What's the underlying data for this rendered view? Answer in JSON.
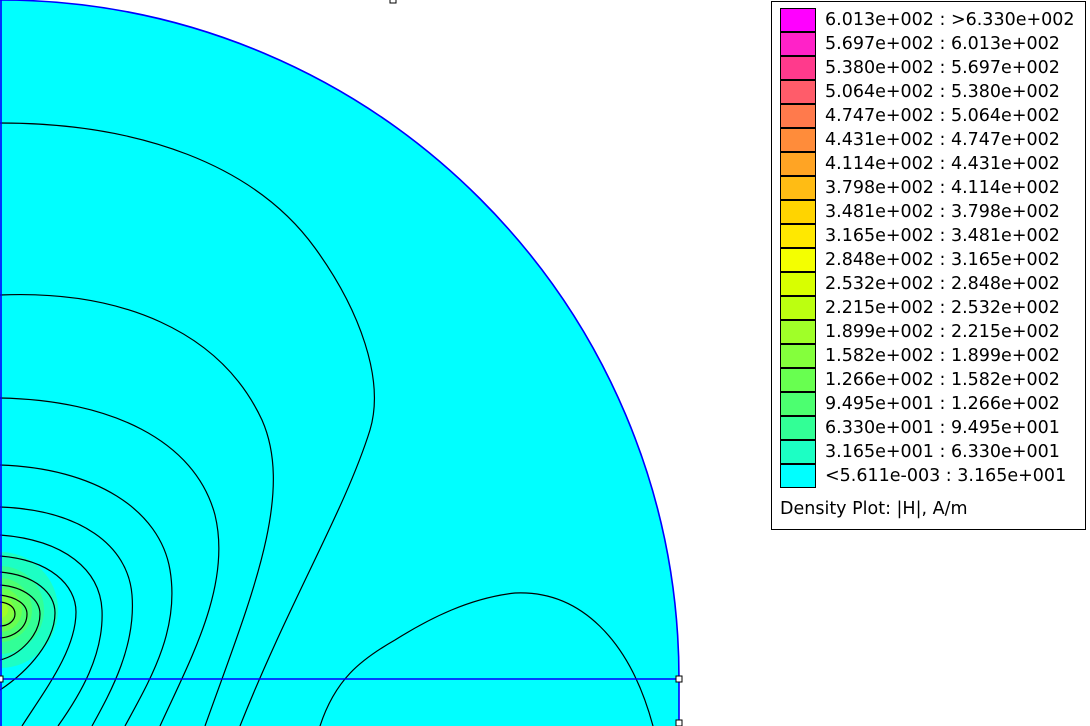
{
  "colors": {
    "background_field": "#00ffff",
    "boundary": "#0000ff",
    "contour_line": "#000000"
  },
  "legend": {
    "title": "Density Plot: |H|, A/m",
    "entries": [
      {
        "label": "6.013e+002 : >6.330e+002",
        "color": "#ff00ff"
      },
      {
        "label": "5.697e+002 : 6.013e+002",
        "color": "#ff22c8"
      },
      {
        "label": "5.380e+002 : 5.697e+002",
        "color": "#ff3a8c"
      },
      {
        "label": "5.064e+002 : 5.380e+002",
        "color": "#ff5c6a"
      },
      {
        "label": "4.747e+002 : 5.064e+002",
        "color": "#ff7a4c"
      },
      {
        "label": "4.431e+002 : 4.747e+002",
        "color": "#ff8c3a"
      },
      {
        "label": "4.114e+002 : 4.431e+002",
        "color": "#ffa424"
      },
      {
        "label": "3.798e+002 : 4.114e+002",
        "color": "#ffbc14"
      },
      {
        "label": "3.481e+002 : 3.798e+002",
        "color": "#ffd400"
      },
      {
        "label": "3.165e+002 : 3.481e+002",
        "color": "#ffe800"
      },
      {
        "label": "2.848e+002 : 3.165e+002",
        "color": "#f4ff00"
      },
      {
        "label": "2.532e+002 : 2.848e+002",
        "color": "#d8ff00"
      },
      {
        "label": "2.215e+002 : 2.532e+002",
        "color": "#bcff10"
      },
      {
        "label": "1.899e+002 : 2.215e+002",
        "color": "#a0ff28"
      },
      {
        "label": "1.582e+002 : 1.899e+002",
        "color": "#84ff3c"
      },
      {
        "label": "1.266e+002 : 1.582e+002",
        "color": "#68ff50"
      },
      {
        "label": "9.495e+001 : 1.266e+002",
        "color": "#4cff70"
      },
      {
        "label": "6.330e+001 : 9.495e+001",
        "color": "#32ff96"
      },
      {
        "label": "3.165e+001 : 6.330e+001",
        "color": "#1cffc4"
      },
      {
        "label": "<5.611e-003 : 3.165e+001",
        "color": "#00ffff"
      }
    ]
  }
}
